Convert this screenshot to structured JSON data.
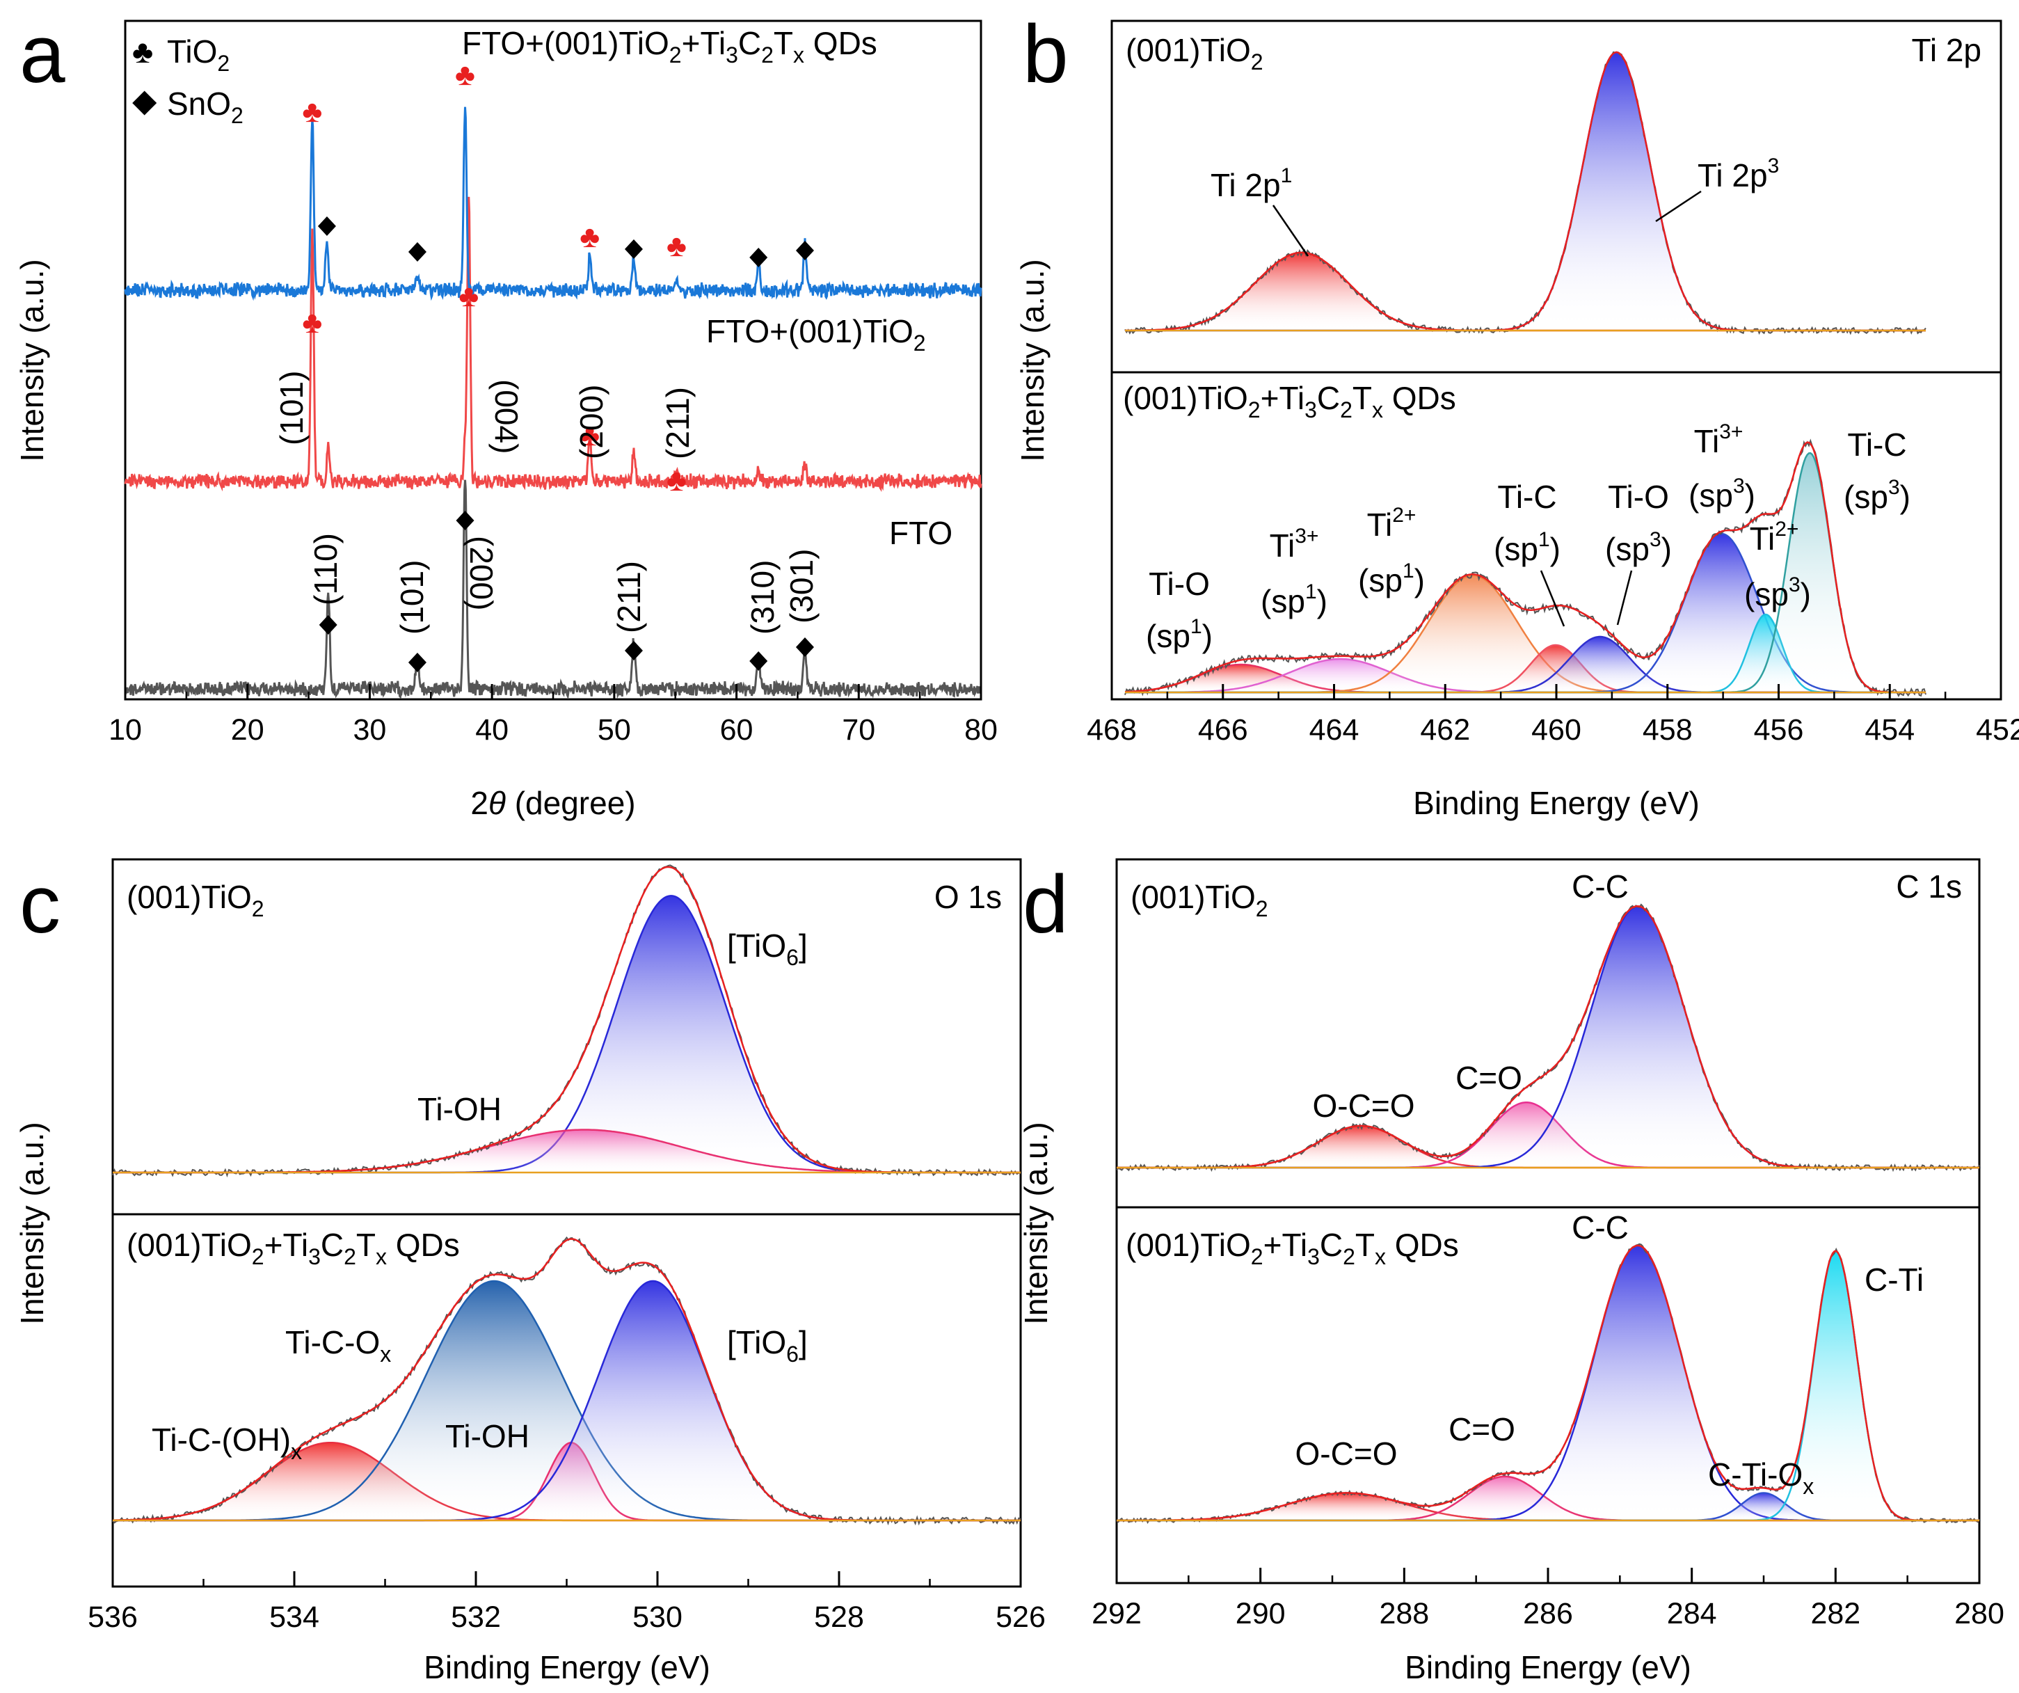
{
  "figure": {
    "panels": [
      {
        "letter": "a"
      },
      {
        "letter": "b"
      },
      {
        "letter": "c"
      },
      {
        "letter": "d"
      }
    ]
  },
  "chart_data": [
    {
      "panel": "a",
      "type": "line",
      "xlabel_prefix": "2",
      "xlabel_theta": "θ",
      "xlabel_suffix": " (degree)",
      "ylabel": "Intensity (a.u.)",
      "xlim": [
        10,
        80
      ],
      "xticks": [
        "10",
        "20",
        "30",
        "40",
        "50",
        "60",
        "70",
        "80"
      ],
      "legend": [
        {
          "symbol": "♣",
          "label": "TiO",
          "sub": "2",
          "color": "#e82020"
        },
        {
          "symbol": "◆",
          "label": "SnO",
          "sub": "2",
          "color": "#000000"
        }
      ],
      "series": [
        {
          "name": "FTO",
          "color": "#555555",
          "baseline": 0,
          "peaks": [
            [
              26.6,
              0.46
            ],
            [
              33.9,
              0.14
            ],
            [
              37.8,
              1.0
            ],
            [
              51.6,
              0.22
            ],
            [
              61.8,
              0.15
            ],
            [
              65.6,
              0.19
            ]
          ]
        },
        {
          "name": "FTO+(001)TiO2",
          "color": "#f04848",
          "baseline": 1,
          "peaks": [
            [
              25.3,
              0.88
            ],
            [
              26.6,
              0.12
            ],
            [
              37.8,
              0.12
            ],
            [
              38.1,
              1.0
            ],
            [
              48.0,
              0.16
            ],
            [
              51.6,
              0.1
            ],
            [
              55.1,
              0.05
            ],
            [
              61.8,
              0.05
            ],
            [
              65.6,
              0.06
            ]
          ]
        },
        {
          "name": "FTO+(001)TiO2+Ti3C2Tx QDs",
          "color": "#1a78d8",
          "baseline": 2,
          "peaks": [
            [
              25.3,
              0.91
            ],
            [
              26.5,
              0.25
            ],
            [
              33.9,
              0.05
            ],
            [
              37.8,
              0.96
            ],
            [
              48.0,
              0.18
            ],
            [
              51.6,
              0.18
            ],
            [
              55.1,
              0.06
            ],
            [
              61.8,
              0.14
            ],
            [
              65.6,
              0.23
            ]
          ]
        }
      ],
      "series_labels": {
        "top": [
          "FTO+(001)TiO",
          "2",
          "+Ti",
          "3",
          "C",
          "2",
          "T",
          "x",
          " QDs"
        ],
        "mid": [
          "FTO+(001)TiO",
          "2"
        ],
        "bot": "FTO"
      },
      "hkl_tio2": [
        "(101)",
        "(004)",
        "(200)",
        "(211)"
      ],
      "hkl_sno2": [
        "(110)",
        "(101)",
        "(200)",
        "(211)",
        "(310)",
        "(301)"
      ]
    },
    {
      "panel": "b",
      "type": "line",
      "xlabel": "Binding Energy (eV)",
      "ylabel": "Intensity (a.u.)",
      "xlim": [
        468,
        452
      ],
      "xticks": [
        "468",
        "466",
        "464",
        "462",
        "460",
        "458",
        "456",
        "454",
        "452"
      ],
      "top": {
        "sample": [
          "(001)TiO",
          "2"
        ],
        "region": "Ti 2p",
        "components": [
          {
            "name": "Ti 2p1",
            "center": 464.3,
            "sigma": 0.85,
            "height": 0.28,
            "color": "#e83030"
          },
          {
            "name": "Ti 2p3",
            "center": 458.6,
            "sigma": 0.6,
            "height": 1.0,
            "color": "#2828d8"
          }
        ],
        "labels": {
          "p1": [
            "Ti 2p",
            "1"
          ],
          "p3": [
            "Ti 2p",
            "3"
          ]
        }
      },
      "bottom": {
        "sample": [
          "(001)TiO",
          "2",
          "+Ti",
          "3",
          "C",
          "2",
          "T",
          "x",
          " QDs"
        ],
        "components": [
          {
            "name": "Ti-O (sp1)",
            "center": 465.4,
            "sigma": 0.75,
            "height": 0.1,
            "color": "#e83060"
          },
          {
            "name": "Ti3+ (sp1)",
            "center": 463.6,
            "sigma": 0.9,
            "height": 0.12,
            "color": "#e060d0"
          },
          {
            "name": "Ti2+ (sp1)",
            "center": 461.2,
            "sigma": 0.8,
            "height": 0.42,
            "color": "#f08040"
          },
          {
            "name": "Ti-C (sp1)",
            "center": 459.7,
            "sigma": 0.45,
            "height": 0.17,
            "color": "#f05060"
          },
          {
            "name": "Ti-O (sp3)",
            "center": 458.9,
            "sigma": 0.55,
            "height": 0.2,
            "color": "#3030d0"
          },
          {
            "name": "Ti3+ (sp3)",
            "center": 456.7,
            "sigma": 0.65,
            "height": 0.57,
            "color": "#3050d0"
          },
          {
            "name": "Ti2+ (sp3)",
            "center": 455.9,
            "sigma": 0.3,
            "height": 0.28,
            "color": "#20c0e0"
          },
          {
            "name": "Ti-C (sp3)",
            "center": 455.1,
            "sigma": 0.38,
            "height": 0.86,
            "color": "#30a0a0"
          }
        ],
        "labels": {
          "tio_sp1": [
            "Ti-O",
            "(sp",
            "1",
            ")"
          ],
          "ti3_sp1": [
            "Ti",
            "3+",
            "(sp",
            "1",
            ")"
          ],
          "ti2_sp1": [
            "Ti",
            "2+",
            "(sp",
            "1",
            ")"
          ],
          "tic_sp1": [
            "Ti-C",
            "(sp",
            "1",
            ")"
          ],
          "tio_sp3": [
            "Ti-O",
            "(sp",
            "3",
            ")"
          ],
          "ti3_sp3": [
            "Ti",
            "3+",
            "(sp",
            "3",
            ")"
          ],
          "ti2_sp3": [
            "Ti",
            "2+",
            "(sp",
            "3",
            ")"
          ],
          "tic_sp3": [
            "Ti-C",
            "(sp",
            "3",
            ")"
          ]
        }
      }
    },
    {
      "panel": "c",
      "type": "line",
      "xlabel": "Binding Energy (eV)",
      "ylabel": "Intensity (a.u.)",
      "xlim": [
        536,
        526
      ],
      "xticks": [
        "536",
        "534",
        "532",
        "530",
        "528",
        "526"
      ],
      "top": {
        "sample": [
          "(001)TiO",
          "2"
        ],
        "region": "O 1s",
        "components": [
          {
            "name": "[TiO6]",
            "center": 529.85,
            "sigma": 0.6,
            "height": 0.97,
            "color": "#2828d8"
          },
          {
            "name": "Ti-OH",
            "center": 530.8,
            "sigma": 1.05,
            "height": 0.15,
            "color": "#e83070"
          }
        ],
        "labels": {
          "tio6": [
            "[TiO",
            "6",
            "]"
          ],
          "tioh": "Ti-OH"
        }
      },
      "bottom": {
        "sample": [
          "(001)TiO",
          "2",
          "+Ti",
          "3",
          "C",
          "2",
          "T",
          "x",
          " QDs"
        ],
        "components": [
          {
            "name": "Ti-C-(OH)x",
            "center": 533.6,
            "sigma": 0.7,
            "height": 0.26,
            "color": "#e83040"
          },
          {
            "name": "Ti-C-Ox",
            "center": 531.8,
            "sigma": 0.75,
            "height": 0.8,
            "color": "#2060b0"
          },
          {
            "name": "Ti-OH",
            "center": 530.95,
            "sigma": 0.25,
            "height": 0.26,
            "color": "#e83070"
          },
          {
            "name": "[TiO6]",
            "center": 530.05,
            "sigma": 0.6,
            "height": 0.8,
            "color": "#2828d8"
          }
        ],
        "labels": {
          "ticoh": [
            "Ti-C-(OH)",
            "x"
          ],
          "ticox": [
            "Ti-C-O",
            "x"
          ],
          "tioh": "Ti-OH",
          "tio6": [
            "[TiO",
            "6",
            "]"
          ]
        }
      }
    },
    {
      "panel": "d",
      "type": "line",
      "xlabel": "Binding Energy (eV)",
      "ylabel": "Intensity (a.u.)",
      "xlim": [
        292,
        280
      ],
      "xticks": [
        "292",
        "290",
        "288",
        "286",
        "284",
        "282",
        "280"
      ],
      "top": {
        "sample": [
          "(001)TiO",
          "2"
        ],
        "region": "C 1s",
        "components": [
          {
            "name": "O-C=O",
            "center": 288.6,
            "sigma": 0.6,
            "height": 0.16,
            "color": "#e83040"
          },
          {
            "name": "C=O",
            "center": 286.3,
            "sigma": 0.5,
            "height": 0.25,
            "color": "#e83090"
          },
          {
            "name": "C-C",
            "center": 284.75,
            "sigma": 0.65,
            "height": 1.0,
            "color": "#2828d8"
          }
        ],
        "labels": {
          "oco": "O-C=O",
          "co": "C=O",
          "cc": "C-C"
        }
      },
      "bottom": {
        "sample": [
          "(001)TiO",
          "2",
          "+Ti",
          "3",
          "C",
          "2",
          "T",
          "x",
          " QDs"
        ],
        "components": [
          {
            "name": "O-C=O",
            "center": 288.8,
            "sigma": 0.8,
            "height": 0.1,
            "color": "#e83040"
          },
          {
            "name": "C=O",
            "center": 286.6,
            "sigma": 0.5,
            "height": 0.16,
            "color": "#e83070"
          },
          {
            "name": "C-C",
            "center": 284.75,
            "sigma": 0.6,
            "height": 1.0,
            "color": "#2828d8"
          },
          {
            "name": "C-Ti-Ox",
            "center": 283.0,
            "sigma": 0.3,
            "height": 0.1,
            "color": "#3050d0"
          },
          {
            "name": "C-Ti",
            "center": 282.0,
            "sigma": 0.3,
            "height": 0.98,
            "color": "#20c0e0"
          }
        ],
        "labels": {
          "oco": "O-C=O",
          "co": "C=O",
          "cc": "C-C",
          "ctiox": [
            "C-Ti-O",
            "x"
          ],
          "cti": "C-Ti"
        }
      }
    }
  ]
}
